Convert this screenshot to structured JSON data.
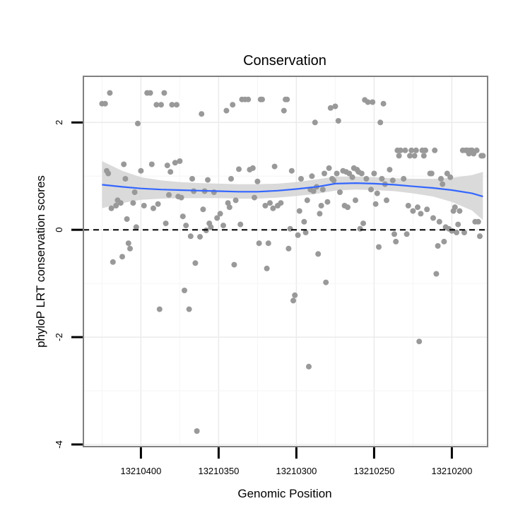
{
  "chart_data": {
    "type": "scatter",
    "title": "Conservation",
    "xlabel": "Genomic Position",
    "ylabel": "phyloP LRT conservation scores",
    "x_reversed": true,
    "xlim": [
      13210437,
      13210177
    ],
    "ylim": [
      -4.04,
      2.86
    ],
    "x_ticks": [
      13210400,
      13210350,
      13210300,
      13210250,
      13210200
    ],
    "x_tick_labels": [
      "13210400",
      "13210350",
      "13210300",
      "13210250",
      "13210200"
    ],
    "y_ticks": [
      -4,
      -2,
      0,
      2
    ],
    "y_tick_labels": [
      "-4",
      "-2",
      "0",
      "2"
    ],
    "grid": true,
    "reference_line": {
      "y": 0,
      "style": "dashed"
    },
    "point_color": "#999999",
    "smooth_color": "#3366ff",
    "band_color": "#d3d3d3",
    "panel_border_color": "#808080",
    "points": [
      [
        13210425,
        2.35
      ],
      [
        13210423,
        2.35
      ],
      [
        13210422,
        1.1
      ],
      [
        13210421,
        1.05
      ],
      [
        13210420,
        2.55
      ],
      [
        13210419,
        0.4
      ],
      [
        13210418,
        -0.6
      ],
      [
        13210416,
        0.45
      ],
      [
        13210415,
        0.55
      ],
      [
        13210413,
        0.5
      ],
      [
        13210412,
        -0.5
      ],
      [
        13210411,
        1.22
      ],
      [
        13210410,
        0.95
      ],
      [
        13210409,
        0.2
      ],
      [
        13210408,
        -0.25
      ],
      [
        13210407,
        -0.35
      ],
      [
        13210405,
        0.5
      ],
      [
        13210404,
        0.7
      ],
      [
        13210403,
        0.05
      ],
      [
        13210402,
        1.98
      ],
      [
        13210400,
        1.1
      ],
      [
        13210398,
        0.45
      ],
      [
        13210396,
        2.55
      ],
      [
        13210394,
        2.55
      ],
      [
        13210393,
        1.22
      ],
      [
        13210392,
        0.4
      ],
      [
        13210390,
        2.33
      ],
      [
        13210389,
        0.48
      ],
      [
        13210388,
        -1.48
      ],
      [
        13210387,
        2.33
      ],
      [
        13210385,
        2.55
      ],
      [
        13210384,
        0.12
      ],
      [
        13210383,
        1.2
      ],
      [
        13210382,
        0.65
      ],
      [
        13210381,
        1.08
      ],
      [
        13210380,
        2.33
      ],
      [
        13210378,
        1.25
      ],
      [
        13210377,
        2.33
      ],
      [
        13210376,
        0.62
      ],
      [
        13210375,
        1.28
      ],
      [
        13210374,
        0.6
      ],
      [
        13210373,
        0.25
      ],
      [
        13210372,
        -1.13
      ],
      [
        13210371,
        0.08
      ],
      [
        13210369,
        -1.48
      ],
      [
        13210368,
        -0.12
      ],
      [
        13210367,
        0.95
      ],
      [
        13210366,
        0.72
      ],
      [
        13210365,
        -0.62
      ],
      [
        13210364,
        -3.75
      ],
      [
        13210362,
        -0.13
      ],
      [
        13210361,
        2.16
      ],
      [
        13210360,
        0.38
      ],
      [
        13210359,
        0.72
      ],
      [
        13210358,
        -0.01
      ],
      [
        13210357,
        0.93
      ],
      [
        13210356,
        0.12
      ],
      [
        13210355,
        0.05
      ],
      [
        13210353,
        0.7
      ],
      [
        13210351,
        0.22
      ],
      [
        13210349,
        0.3
      ],
      [
        13210347,
        0.08
      ],
      [
        13210345,
        2.22
      ],
      [
        13210344,
        0.5
      ],
      [
        13210343,
        0.42
      ],
      [
        13210342,
        0.95
      ],
      [
        13210341,
        2.33
      ],
      [
        13210340,
        -0.65
      ],
      [
        13210339,
        0.55
      ],
      [
        13210337,
        1.13
      ],
      [
        13210336,
        0.1
      ],
      [
        13210335,
        2.43
      ],
      [
        13210333,
        2.43
      ],
      [
        13210331,
        2.43
      ],
      [
        13210330,
        1.12
      ],
      [
        13210328,
        1.15
      ],
      [
        13210327,
        0.6
      ],
      [
        13210325,
        0.9
      ],
      [
        13210324,
        -0.25
      ],
      [
        13210323,
        2.43
      ],
      [
        13210322,
        2.43
      ],
      [
        13210320,
        0.45
      ],
      [
        13210319,
        -0.72
      ],
      [
        13210318,
        -0.25
      ],
      [
        13210317,
        0.5
      ],
      [
        13210315,
        0.4
      ],
      [
        13210314,
        1.18
      ],
      [
        13210312,
        0.45
      ],
      [
        13210310,
        0.5
      ],
      [
        13210308,
        2.22
      ],
      [
        13210307,
        2.43
      ],
      [
        13210306,
        2.43
      ],
      [
        13210305,
        -0.35
      ],
      [
        13210304,
        0.02
      ],
      [
        13210303,
        1.1
      ],
      [
        13210302,
        -1.32
      ],
      [
        13210301,
        -1.22
      ],
      [
        13210299,
        -0.1
      ],
      [
        13210298,
        0.35
      ],
      [
        13210297,
        0.95
      ],
      [
        13210295,
        0.15
      ],
      [
        13210294,
        -0.05
      ],
      [
        13210293,
        0.55
      ],
      [
        13210292,
        -2.55
      ],
      [
        13210291,
        0.75
      ],
      [
        13210290,
        1.0
      ],
      [
        13210289,
        0.72
      ],
      [
        13210288,
        2.0
      ],
      [
        13210287,
        0.8
      ],
      [
        13210286,
        -0.45
      ],
      [
        13210285,
        0.3
      ],
      [
        13210284,
        0.45
      ],
      [
        13210283,
        0.75
      ],
      [
        13210282,
        1.05
      ],
      [
        13210281,
        -0.98
      ],
      [
        13210280,
        0.52
      ],
      [
        13210279,
        1.15
      ],
      [
        13210278,
        2.27
      ],
      [
        13210277,
        0.95
      ],
      [
        13210276,
        0.92
      ],
      [
        13210275,
        2.3
      ],
      [
        13210274,
        1.05
      ],
      [
        13210273,
        2.03
      ],
      [
        13210272,
        0.7
      ],
      [
        13210270,
        1.1
      ],
      [
        13210269,
        0.45
      ],
      [
        13210268,
        1.08
      ],
      [
        13210267,
        0.42
      ],
      [
        13210266,
        1.05
      ],
      [
        13210264,
        0.98
      ],
      [
        13210263,
        1.15
      ],
      [
        13210262,
        0.55
      ],
      [
        13210261,
        1.12
      ],
      [
        13210260,
        1.08
      ],
      [
        13210259,
        0.02
      ],
      [
        13210258,
        1.05
      ],
      [
        13210257,
        0.12
      ],
      [
        13210256,
        2.42
      ],
      [
        13210255,
        0.95
      ],
      [
        13210254,
        2.38
      ],
      [
        13210252,
        0.75
      ],
      [
        13210251,
        2.38
      ],
      [
        13210250,
        1.05
      ],
      [
        13210249,
        0.48
      ],
      [
        13210248,
        0.68
      ],
      [
        13210247,
        -0.32
      ],
      [
        13210246,
        2.0
      ],
      [
        13210245,
        0.95
      ],
      [
        13210244,
        2.35
      ],
      [
        13210243,
        0.85
      ],
      [
        13210242,
        0.55
      ],
      [
        13210240,
        1.12
      ],
      [
        13210238,
        0.92
      ],
      [
        13210237,
        -0.08
      ],
      [
        13210236,
        -0.22
      ],
      [
        13210235,
        1.48
      ],
      [
        13210234,
        1.38
      ],
      [
        13210233,
        1.48
      ],
      [
        13210231,
        0.95
      ],
      [
        13210230,
        1.48
      ],
      [
        13210229,
        -0.08
      ],
      [
        13210228,
        0.45
      ],
      [
        13210227,
        1.38
      ],
      [
        13210226,
        1.48
      ],
      [
        13210225,
        0.35
      ],
      [
        13210224,
        1.38
      ],
      [
        13210223,
        1.48
      ],
      [
        13210222,
        0.42
      ],
      [
        13210221,
        -2.08
      ],
      [
        13210220,
        0.3
      ],
      [
        13210219,
        1.48
      ],
      [
        13210218,
        1.38
      ],
      [
        13210217,
        1.48
      ],
      [
        13210216,
        0.38
      ],
      [
        13210214,
        1.05
      ],
      [
        13210213,
        1.05
      ],
      [
        13210212,
        0.22
      ],
      [
        13210211,
        1.48
      ],
      [
        13210210,
        -0.82
      ],
      [
        13210209,
        -0.3
      ],
      [
        13210208,
        0.15
      ],
      [
        13210207,
        0.95
      ],
      [
        13210206,
        0.85
      ],
      [
        13210205,
        -0.22
      ],
      [
        13210204,
        0.05
      ],
      [
        13210203,
        1.05
      ],
      [
        13210202,
        0.02
      ],
      [
        13210201,
        0.98
      ],
      [
        13210200,
        -0.02
      ],
      [
        13210199,
        0.35
      ],
      [
        13210198,
        0.42
      ],
      [
        13210197,
        -0.05
      ],
      [
        13210196,
        0.1
      ],
      [
        13210195,
        0.35
      ],
      [
        13210193,
        1.48
      ],
      [
        13210192,
        -0.05
      ],
      [
        13210191,
        1.48
      ],
      [
        13210190,
        1.48
      ],
      [
        13210189,
        1.42
      ],
      [
        13210188,
        1.48
      ],
      [
        13210187,
        1.48
      ],
      [
        13210186,
        1.42
      ],
      [
        13210185,
        0.15
      ],
      [
        13210184,
        1.48
      ],
      [
        13210183,
        0.15
      ],
      [
        13210182,
        -0.12
      ],
      [
        13210181,
        1.38
      ],
      [
        13210180,
        1.38
      ]
    ],
    "smooth": [
      [
        13210425,
        0.84
      ],
      [
        13210412,
        0.8
      ],
      [
        13210400,
        0.77
      ],
      [
        13210387,
        0.75
      ],
      [
        13210375,
        0.74
      ],
      [
        13210362,
        0.73
      ],
      [
        13210350,
        0.72
      ],
      [
        13210337,
        0.71
      ],
      [
        13210325,
        0.71
      ],
      [
        13210312,
        0.73
      ],
      [
        13210300,
        0.76
      ],
      [
        13210287,
        0.8
      ],
      [
        13210275,
        0.86
      ],
      [
        13210262,
        0.87
      ],
      [
        13210250,
        0.86
      ],
      [
        13210237,
        0.84
      ],
      [
        13210225,
        0.81
      ],
      [
        13210212,
        0.78
      ],
      [
        13210200,
        0.74
      ],
      [
        13210187,
        0.68
      ],
      [
        13210180,
        0.62
      ]
    ],
    "band": [
      [
        13210425,
        0.4,
        1.28
      ],
      [
        13210412,
        0.5,
        1.1
      ],
      [
        13210400,
        0.56,
        0.98
      ],
      [
        13210387,
        0.58,
        0.92
      ],
      [
        13210375,
        0.59,
        0.89
      ],
      [
        13210362,
        0.59,
        0.87
      ],
      [
        13210350,
        0.59,
        0.86
      ],
      [
        13210337,
        0.58,
        0.85
      ],
      [
        13210325,
        0.58,
        0.85
      ],
      [
        13210312,
        0.6,
        0.86
      ],
      [
        13210300,
        0.63,
        0.89
      ],
      [
        13210287,
        0.67,
        0.94
      ],
      [
        13210275,
        0.73,
        0.99
      ],
      [
        13210262,
        0.75,
        0.99
      ],
      [
        13210250,
        0.74,
        0.98
      ],
      [
        13210237,
        0.72,
        0.96
      ],
      [
        13210225,
        0.68,
        0.95
      ],
      [
        13210212,
        0.62,
        0.95
      ],
      [
        13210200,
        0.52,
        0.97
      ],
      [
        13210187,
        0.36,
        1.02
      ],
      [
        13210180,
        0.18,
        1.08
      ]
    ]
  }
}
